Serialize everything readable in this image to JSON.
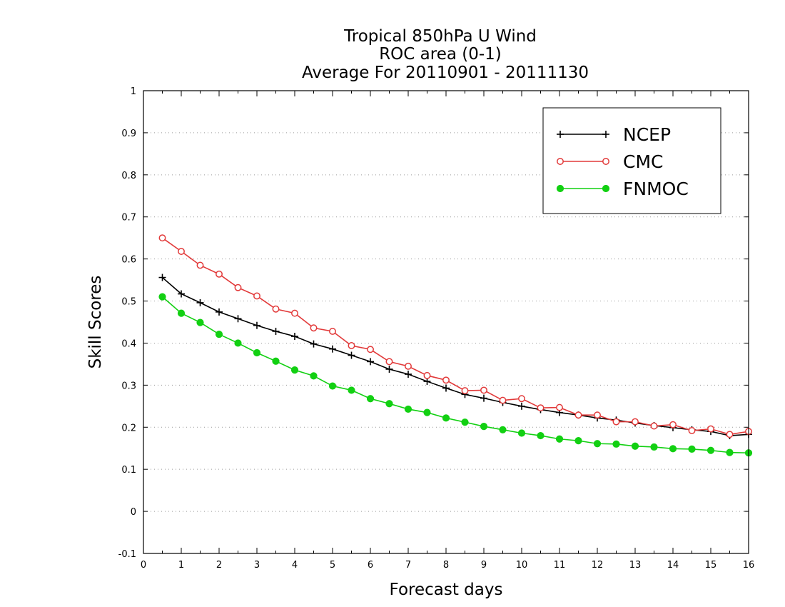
{
  "chart_data": {
    "type": "line",
    "title": [
      "Tropical 850hPa U Wind",
      "ROC area (0-1)",
      "Average For 20110901 - 20111130"
    ],
    "xlabel": "Forecast days",
    "ylabel": "Skill Scores",
    "xlim": [
      0,
      16
    ],
    "ylim": [
      -0.1,
      1
    ],
    "xticks": [
      0,
      1,
      2,
      3,
      4,
      5,
      6,
      7,
      8,
      9,
      10,
      11,
      12,
      13,
      14,
      15,
      16
    ],
    "yticks": [
      -0.1,
      0,
      0.1,
      0.2,
      0.3,
      0.4,
      0.5,
      0.6,
      0.7,
      0.8,
      0.9,
      1
    ],
    "ytick_labels": [
      "-0.1",
      "0",
      "0.1",
      "0.2",
      "0.3",
      "0.4",
      "0.5",
      "0.6",
      "0.7",
      "0.8",
      "0.9",
      "1"
    ],
    "grid": "horizontal dotted",
    "legend_position": "top-right",
    "x": [
      0.5,
      1,
      1.5,
      2,
      2.5,
      3,
      3.5,
      4,
      4.5,
      5,
      5.5,
      6,
      6.5,
      7,
      7.5,
      8,
      8.5,
      9,
      9.5,
      10,
      10.5,
      11,
      11.5,
      12,
      12.5,
      13,
      13.5,
      14,
      14.5,
      15,
      15.5,
      16
    ],
    "series": [
      {
        "name": "NCEP",
        "color": "#000000",
        "marker": "plus",
        "values": [
          0.556,
          0.517,
          0.496,
          0.474,
          0.458,
          0.442,
          0.428,
          0.416,
          0.398,
          0.386,
          0.371,
          0.356,
          0.338,
          0.326,
          0.309,
          0.293,
          0.278,
          0.269,
          0.259,
          0.25,
          0.242,
          0.235,
          0.229,
          0.222,
          0.217,
          0.21,
          0.204,
          0.199,
          0.194,
          0.19,
          0.18,
          0.183
        ]
      },
      {
        "name": "CMC",
        "color": "#e23a3a",
        "marker": "open-circle",
        "values": [
          0.65,
          0.618,
          0.585,
          0.564,
          0.532,
          0.512,
          0.481,
          0.471,
          0.436,
          0.428,
          0.394,
          0.385,
          0.356,
          0.345,
          0.323,
          0.312,
          0.287,
          0.288,
          0.264,
          0.268,
          0.246,
          0.247,
          0.229,
          0.229,
          0.213,
          0.213,
          0.203,
          0.206,
          0.192,
          0.196,
          0.183,
          0.19
        ]
      },
      {
        "name": "FNMOC",
        "color": "#12d012",
        "marker": "filled-circle",
        "values": [
          0.51,
          0.471,
          0.449,
          0.421,
          0.4,
          0.377,
          0.357,
          0.336,
          0.322,
          0.298,
          0.288,
          0.268,
          0.256,
          0.243,
          0.235,
          0.222,
          0.212,
          0.202,
          0.194,
          0.186,
          0.18,
          0.172,
          0.168,
          0.161,
          0.16,
          0.155,
          0.153,
          0.149,
          0.148,
          0.145,
          0.14,
          0.139
        ]
      }
    ]
  }
}
